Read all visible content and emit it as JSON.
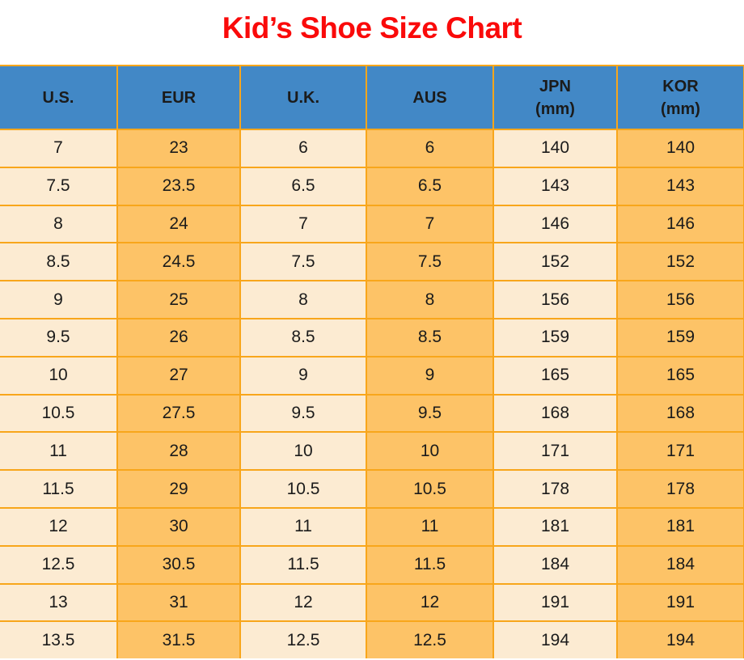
{
  "title": "Kid’s Shoe Size Chart",
  "colors": {
    "title_red": "#fa0a0a",
    "header_bg": "#4288c6",
    "col_light": "#fcebd2",
    "col_orange": "#fdc367",
    "border": "#f8a61b",
    "text": "#1b1b1b"
  },
  "table": {
    "header": [
      {
        "label": "U.S.",
        "sublabel": ""
      },
      {
        "label": "EUR",
        "sublabel": ""
      },
      {
        "label": "U.K.",
        "sublabel": ""
      },
      {
        "label": "AUS",
        "sublabel": ""
      },
      {
        "label": "JPN",
        "sublabel": "(mm)"
      },
      {
        "label": "KOR",
        "sublabel": "(mm)"
      }
    ]
  },
  "chart_data": {
    "type": "table",
    "title": "Kid’s Shoe Size Chart",
    "columns": [
      "U.S.",
      "EUR",
      "U.K.",
      "AUS",
      "JPN (mm)",
      "KOR (mm)"
    ],
    "rows": [
      [
        "7",
        "23",
        "6",
        "6",
        "140",
        "140"
      ],
      [
        "7.5",
        "23.5",
        "6.5",
        "6.5",
        "143",
        "143"
      ],
      [
        "8",
        "24",
        "7",
        "7",
        "146",
        "146"
      ],
      [
        "8.5",
        "24.5",
        "7.5",
        "7.5",
        "152",
        "152"
      ],
      [
        "9",
        "25",
        "8",
        "8",
        "156",
        "156"
      ],
      [
        "9.5",
        "26",
        "8.5",
        "8.5",
        "159",
        "159"
      ],
      [
        "10",
        "27",
        "9",
        "9",
        "165",
        "165"
      ],
      [
        "10.5",
        "27.5",
        "9.5",
        "9.5",
        "168",
        "168"
      ],
      [
        "11",
        "28",
        "10",
        "10",
        "171",
        "171"
      ],
      [
        "11.5",
        "29",
        "10.5",
        "10.5",
        "178",
        "178"
      ],
      [
        "12",
        "30",
        "11",
        "11",
        "181",
        "181"
      ],
      [
        "12.5",
        "30.5",
        "11.5",
        "11.5",
        "184",
        "184"
      ],
      [
        "13",
        "31",
        "12",
        "12",
        "191",
        "191"
      ],
      [
        "13.5",
        "31.5",
        "12.5",
        "12.5",
        "194",
        "194"
      ]
    ]
  }
}
